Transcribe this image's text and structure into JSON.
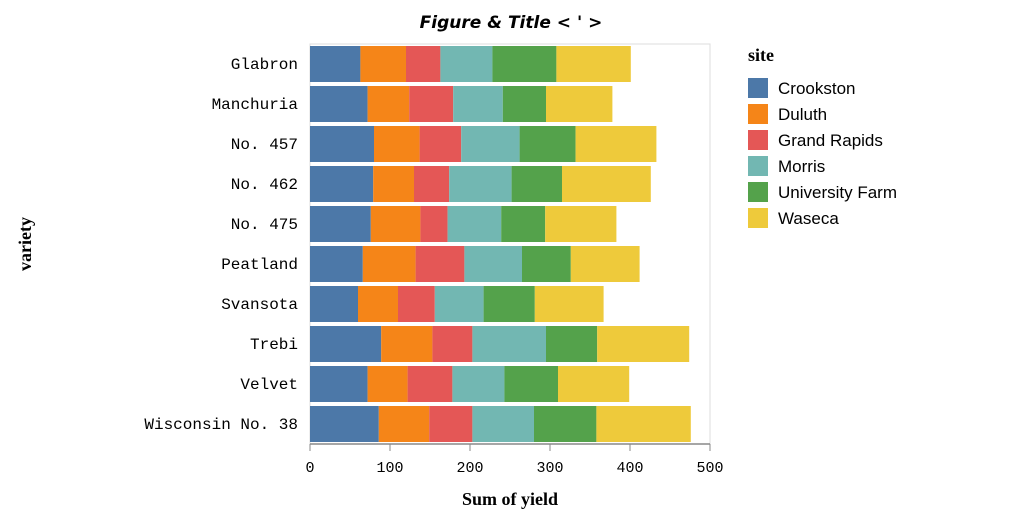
{
  "chart_data": {
    "type": "bar",
    "orientation": "horizontal",
    "stacked": true,
    "title": "Figure & Title < ' >",
    "xlabel": "Sum of yield",
    "ylabel": "variety",
    "xlim": [
      0,
      500
    ],
    "xticks": [
      "0",
      "100",
      "200",
      "300",
      "400",
      "500"
    ],
    "grid": false,
    "legend": {
      "title": "site",
      "position": "right"
    },
    "categories": [
      "Glabron",
      "Manchuria",
      "No. 457",
      "No. 462",
      "No. 475",
      "Peatland",
      "Svansota",
      "Trebi",
      "Velvet",
      "Wisconsin No. 38"
    ],
    "series": [
      {
        "name": "Crookston",
        "color": "#4c78a8",
        "values": [
          63,
          72,
          80,
          79,
          76,
          66,
          60,
          89,
          72,
          86
        ]
      },
      {
        "name": "Duluth",
        "color": "#f58518",
        "values": [
          57,
          52,
          57,
          51,
          62,
          66,
          50,
          64,
          50,
          63
        ]
      },
      {
        "name": "Grand Rapids",
        "color": "#e45756",
        "values": [
          43,
          55,
          52,
          44,
          34,
          61,
          46,
          50,
          56,
          54
        ]
      },
      {
        "name": "Morris",
        "color": "#72b7b2",
        "values": [
          65,
          62,
          73,
          78,
          67,
          72,
          61,
          92,
          65,
          77
        ]
      },
      {
        "name": "University Farm",
        "color": "#54a24b",
        "values": [
          80,
          54,
          70,
          63,
          55,
          61,
          64,
          64,
          67,
          78
        ]
      },
      {
        "name": "Waseca",
        "color": "#eeca3b",
        "values": [
          93,
          83,
          101,
          111,
          89,
          86,
          86,
          115,
          89,
          118
        ]
      }
    ]
  }
}
